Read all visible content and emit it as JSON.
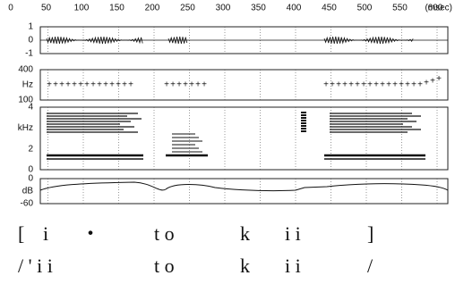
{
  "time_axis": {
    "unit": "(msec)",
    "ticks": [
      0,
      50,
      100,
      150,
      200,
      250,
      300,
      350,
      400,
      450,
      500,
      550,
      600
    ]
  },
  "panels": [
    {
      "labels": [
        "1",
        "0",
        "-1"
      ]
    },
    {
      "labels": [
        "400",
        "Hz",
        "100"
      ]
    },
    {
      "labels": [
        "4",
        "kHz",
        "2",
        "0"
      ]
    },
    {
      "labels": [
        "0",
        "dB",
        "-60"
      ]
    }
  ],
  "transcription": {
    "phonetic": [
      "[",
      "i",
      "・",
      "t o",
      "k",
      "i i",
      "]"
    ],
    "phonemic": [
      "/ ' i i",
      "t o",
      "k",
      "i i",
      "/"
    ]
  }
}
